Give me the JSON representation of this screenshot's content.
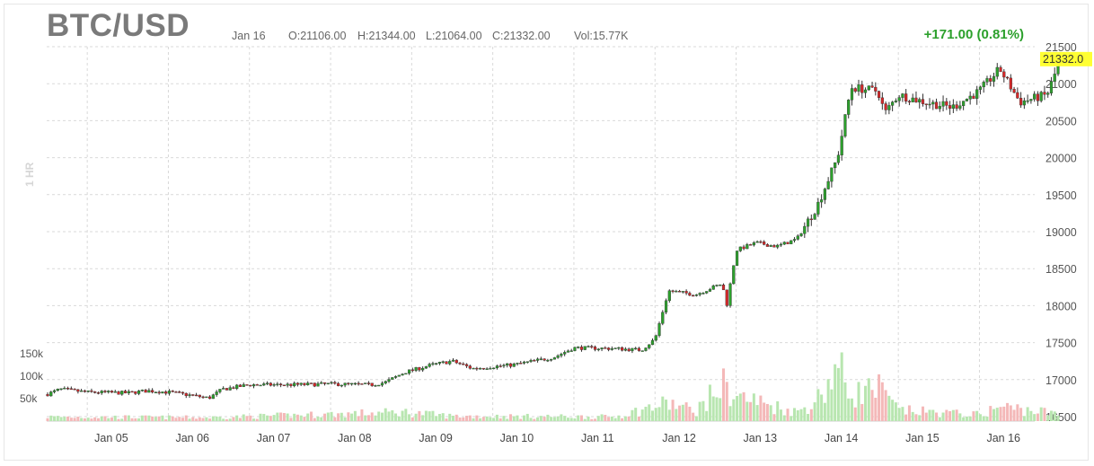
{
  "header": {
    "title": "BTC/USD",
    "date": "Jan 16",
    "open": "O:21106.00",
    "high": "H:21344.00",
    "low": "L:21064.00",
    "close": "C:21332.00",
    "volume": "Vol:15.77K",
    "change": "+171.00 (0.81%)"
  },
  "side_label": "1 HR",
  "colors": {
    "up": "#2ca02c",
    "down": "#d62728",
    "volume_up": "#b8e6b0",
    "volume_down": "#f4b8b8",
    "grid": "#d9d9d9",
    "last_price_bg": "#ffff33"
  },
  "chart_data": {
    "type": "candlestick",
    "title": "BTC/USD",
    "interval": "1 HR",
    "x_tick_labels": [
      "Jan 05",
      "Jan 06",
      "Jan 07",
      "Jan 08",
      "Jan 09",
      "Jan 10",
      "Jan 11",
      "Jan 12",
      "Jan 13",
      "Jan 14",
      "Jan 15",
      "Jan 16"
    ],
    "y_ticks": [
      16500,
      17000,
      17500,
      18000,
      18500,
      19000,
      19500,
      20000,
      20500,
      21000,
      21500
    ],
    "y_range": [
      16500,
      21500
    ],
    "volume_ticks": [
      "150k",
      "100k",
      "50k"
    ],
    "volume_range": [
      0,
      150000
    ],
    "last_price": "21332.0",
    "grid": true,
    "price_path": [
      [
        "2023-01-04 12:00",
        16800
      ],
      [
        "2023-01-04 16:00",
        16870
      ],
      [
        "2023-01-05 00:00",
        16830
      ],
      [
        "2023-01-05 12:00",
        16820
      ],
      [
        "2023-01-05 18:00",
        16850
      ],
      [
        "2023-01-06 00:00",
        16830
      ],
      [
        "2023-01-06 08:00",
        16780
      ],
      [
        "2023-01-06 12:00",
        16750
      ],
      [
        "2023-01-06 16:00",
        16870
      ],
      [
        "2023-01-07 00:00",
        16930
      ],
      [
        "2023-01-07 12:00",
        16930
      ],
      [
        "2023-01-08 00:00",
        16940
      ],
      [
        "2023-01-08 12:00",
        16930
      ],
      [
        "2023-01-08 16:00",
        16960
      ],
      [
        "2023-01-08 22:00",
        17100
      ],
      [
        "2023-01-09 06:00",
        17200
      ],
      [
        "2023-01-09 12:00",
        17250
      ],
      [
        "2023-01-09 18:00",
        17150
      ],
      [
        "2023-01-10 06:00",
        17200
      ],
      [
        "2023-01-10 18:00",
        17300
      ],
      [
        "2023-01-11 00:00",
        17430
      ],
      [
        "2023-01-11 12:00",
        17420
      ],
      [
        "2023-01-11 20:00",
        17400
      ],
      [
        "2023-01-12 00:00",
        17550
      ],
      [
        "2023-01-12 04:00",
        18200
      ],
      [
        "2023-01-12 12:00",
        18150
      ],
      [
        "2023-01-12 20:00",
        18300
      ],
      [
        "2023-01-12 21:00",
        17950
      ],
      [
        "2023-01-13 00:00",
        18750
      ],
      [
        "2023-01-13 06:00",
        18850
      ],
      [
        "2023-01-13 12:00",
        18800
      ],
      [
        "2023-01-13 18:00",
        18900
      ],
      [
        "2023-01-14 00:00",
        19350
      ],
      [
        "2023-01-14 06:00",
        20000
      ],
      [
        "2023-01-14 10:00",
        20950
      ],
      [
        "2023-01-14 18:00",
        20900
      ],
      [
        "2023-01-14 20:00",
        20600
      ],
      [
        "2023-01-15 00:00",
        20850
      ],
      [
        "2023-01-15 08:00",
        20750
      ],
      [
        "2023-01-15 16:00",
        20680
      ],
      [
        "2023-01-16 00:00",
        20900
      ],
      [
        "2023-01-16 06:00",
        21200
      ],
      [
        "2023-01-16 12:00",
        20750
      ],
      [
        "2023-01-16 20:00",
        20850
      ],
      [
        "2023-01-17 00:00",
        21332
      ]
    ],
    "volume_profile": [
      [
        "2023-01-04 12:00",
        12000
      ],
      [
        "2023-01-06 12:00",
        10000
      ],
      [
        "2023-01-08 22:00",
        25000
      ],
      [
        "2023-01-09 12:00",
        14000
      ],
      [
        "2023-01-11 12:00",
        12000
      ],
      [
        "2023-01-12 04:00",
        50000
      ],
      [
        "2023-01-12 12:00",
        28000
      ],
      [
        "2023-01-12 20:00",
        100000
      ],
      [
        "2023-01-13 00:00",
        70000
      ],
      [
        "2023-01-13 18:00",
        25000
      ],
      [
        "2023-01-14 00:00",
        60000
      ],
      [
        "2023-01-14 06:00",
        150000
      ],
      [
        "2023-01-14 10:00",
        75000
      ],
      [
        "2023-01-14 18:00",
        90000
      ],
      [
        "2023-01-15 00:00",
        30000
      ],
      [
        "2023-01-16 00:00",
        18000
      ],
      [
        "2023-01-16 06:00",
        40000
      ],
      [
        "2023-01-16 20:00",
        25000
      ],
      [
        "2023-01-17 00:00",
        15000
      ]
    ]
  }
}
